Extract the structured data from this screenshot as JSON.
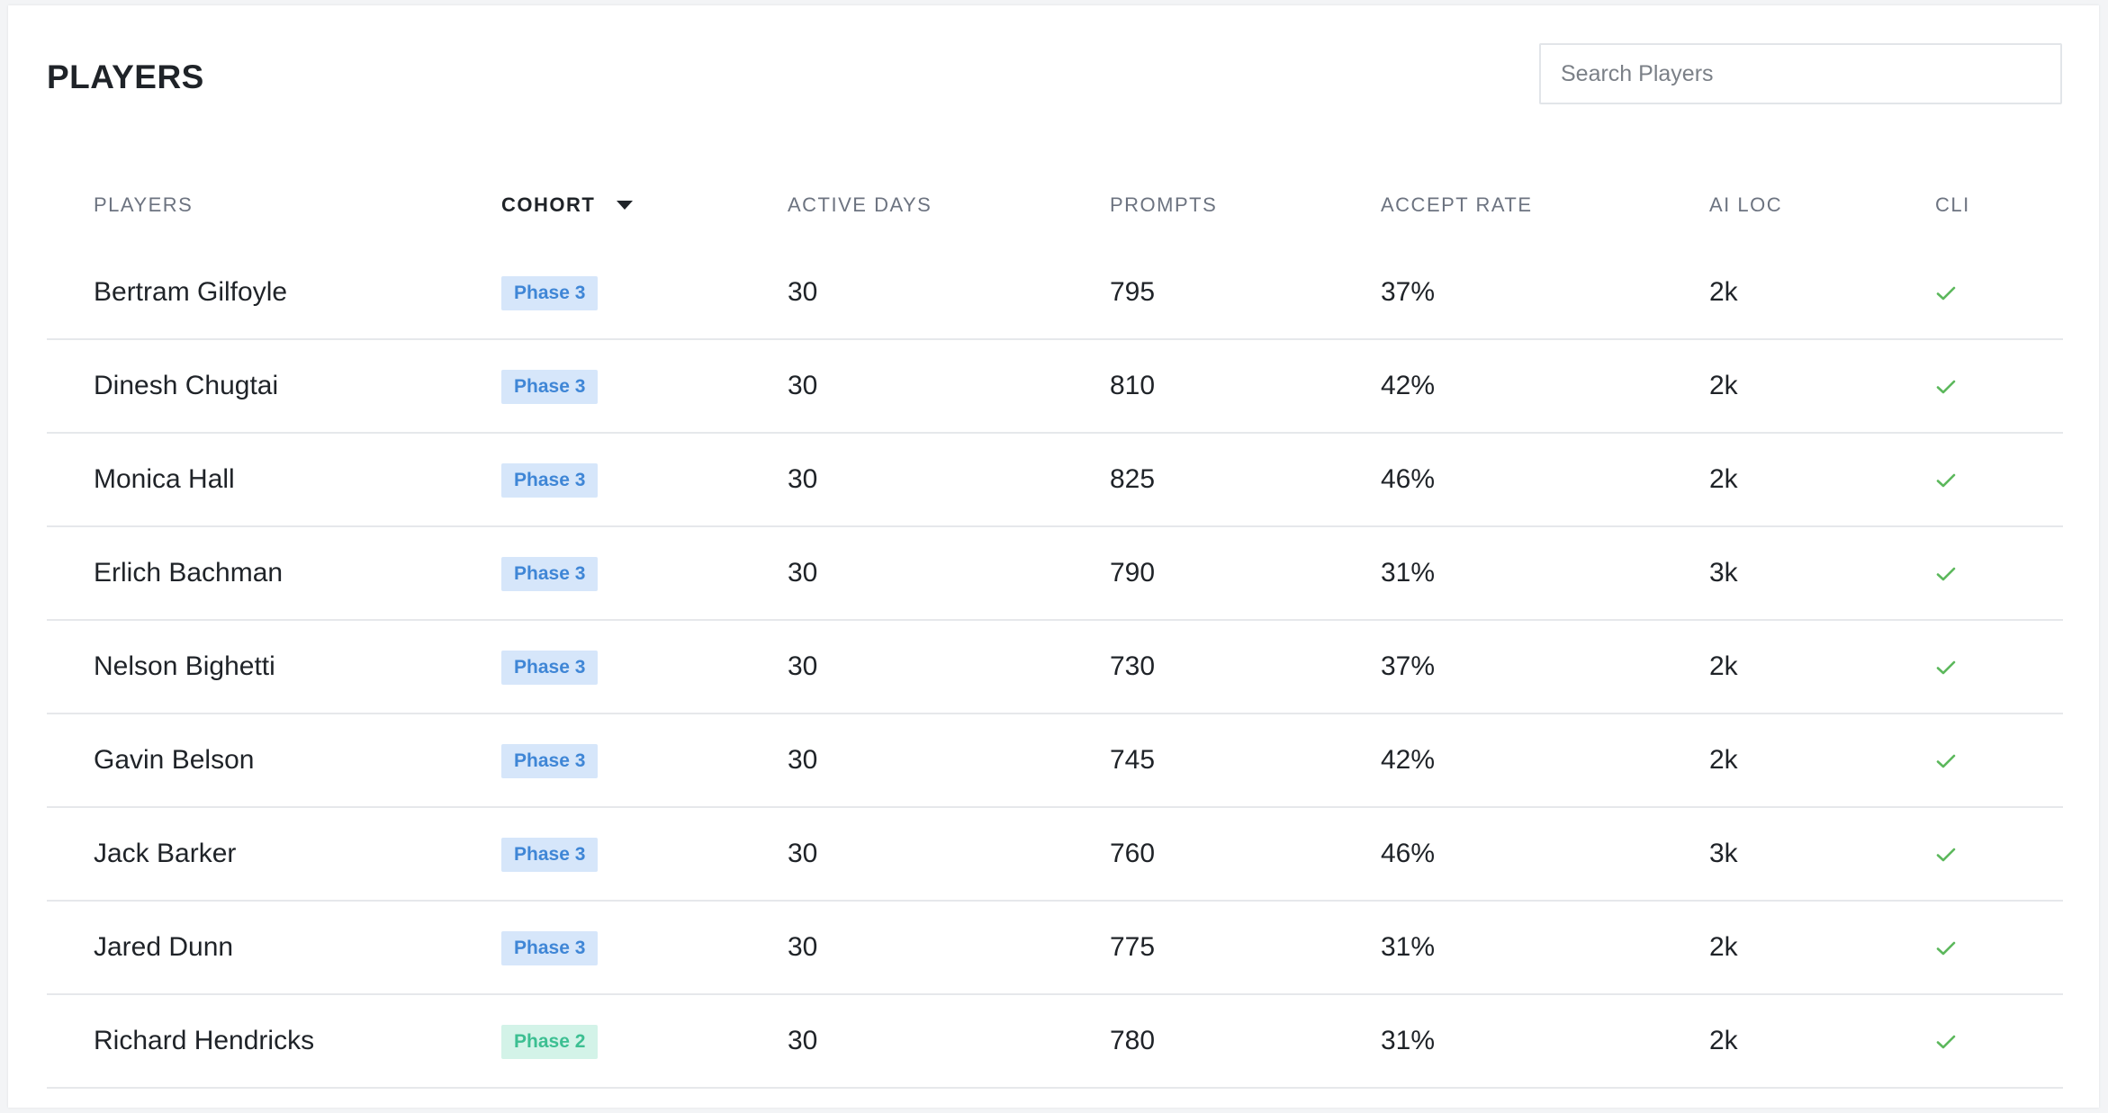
{
  "header": {
    "title": "PLAYERS",
    "search_placeholder": "Search Players"
  },
  "table": {
    "columns": [
      "PLAYERS",
      "COHORT",
      "ACTIVE DAYS",
      "PROMPTS",
      "ACCEPT RATE",
      "AI LOC",
      "CLI"
    ],
    "sorted_column": "COHORT",
    "sort_direction": "descending",
    "rows": [
      {
        "player": "Bertram Gilfoyle",
        "cohort": "Phase 3",
        "active_days": "30",
        "prompts": "795",
        "accept_rate": "37%",
        "ai_loc": "2k",
        "cli": true
      },
      {
        "player": "Dinesh Chugtai",
        "cohort": "Phase 3",
        "active_days": "30",
        "prompts": "810",
        "accept_rate": "42%",
        "ai_loc": "2k",
        "cli": true
      },
      {
        "player": "Monica Hall",
        "cohort": "Phase 3",
        "active_days": "30",
        "prompts": "825",
        "accept_rate": "46%",
        "ai_loc": "2k",
        "cli": true
      },
      {
        "player": "Erlich Bachman",
        "cohort": "Phase 3",
        "active_days": "30",
        "prompts": "790",
        "accept_rate": "31%",
        "ai_loc": "3k",
        "cli": true
      },
      {
        "player": "Nelson Bighetti",
        "cohort": "Phase 3",
        "active_days": "30",
        "prompts": "730",
        "accept_rate": "37%",
        "ai_loc": "2k",
        "cli": true
      },
      {
        "player": "Gavin Belson",
        "cohort": "Phase 3",
        "active_days": "30",
        "prompts": "745",
        "accept_rate": "42%",
        "ai_loc": "2k",
        "cli": true
      },
      {
        "player": "Jack Barker",
        "cohort": "Phase 3",
        "active_days": "30",
        "prompts": "760",
        "accept_rate": "46%",
        "ai_loc": "3k",
        "cli": true
      },
      {
        "player": "Jared Dunn",
        "cohort": "Phase 3",
        "active_days": "30",
        "prompts": "775",
        "accept_rate": "31%",
        "ai_loc": "2k",
        "cli": true
      },
      {
        "player": "Richard Hendricks",
        "cohort": "Phase 2",
        "active_days": "30",
        "prompts": "780",
        "accept_rate": "31%",
        "ai_loc": "2k",
        "cli": true
      }
    ]
  },
  "colors": {
    "phase3_bg": "#d6e6fa",
    "phase3_text": "#3f86d6",
    "phase2_bg": "#d3f3e8",
    "phase2_text": "#3cbf92",
    "check": "#5cb85c"
  },
  "icons": {
    "sort": "caret-down-icon",
    "cli": "check-icon"
  }
}
